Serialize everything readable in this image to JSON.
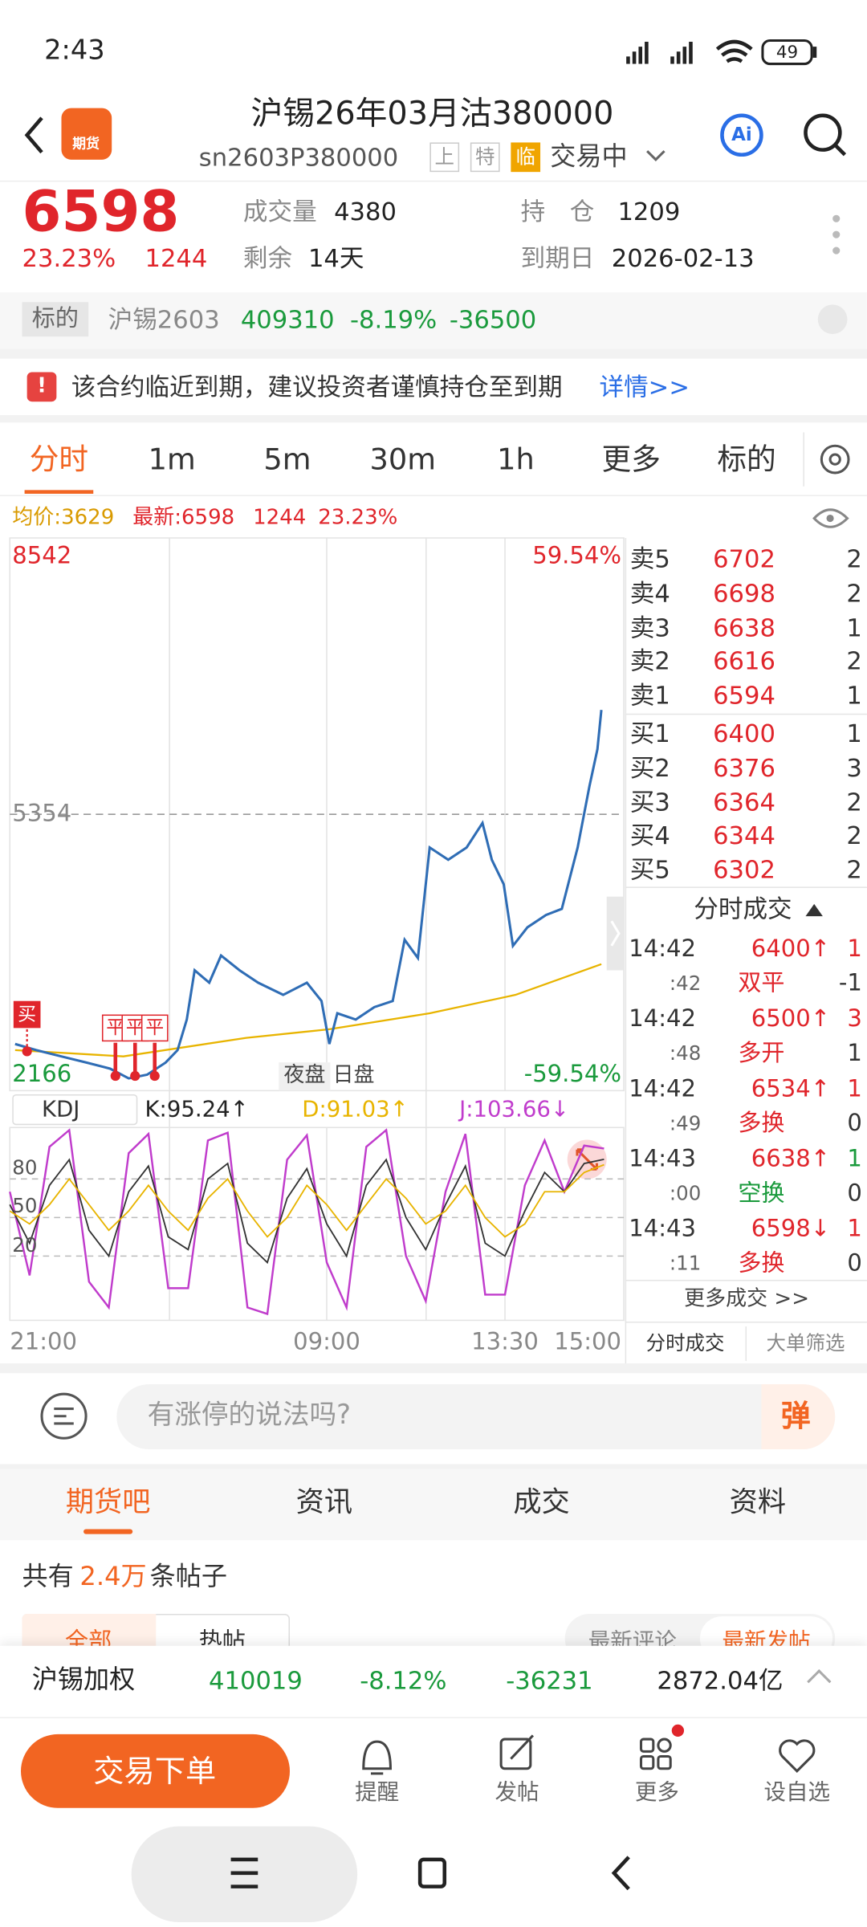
{
  "status_bar": {
    "time": "2:43",
    "battery": "49"
  },
  "header": {
    "logo": "期货",
    "title": "沪锡26年03月沽380000",
    "code": "sn2603P380000",
    "tags": [
      "上",
      "特",
      "临"
    ],
    "state": "交易中",
    "ai": "Ai"
  },
  "quote": {
    "price": "6598",
    "change_pct": "23.23%",
    "change": "1244",
    "volume_label": "成交量",
    "volume": "4380",
    "oi_label": "持　仓",
    "oi": "1209",
    "remain_label": "剩余",
    "remain": "14天",
    "expiry_label": "到期日",
    "expiry": "2026-02-13"
  },
  "underlying": {
    "label": "标的",
    "name": "沪锡2603",
    "price": "409310",
    "pct": "-8.19%",
    "change": "-36500"
  },
  "notice": {
    "icon": "!",
    "text": "该合约临近到期，建议投资者谨慎持仓至到期",
    "link": "详情>>"
  },
  "tabs": [
    "分时",
    "1m",
    "5m",
    "30m",
    "1h",
    "更多",
    "标的"
  ],
  "info_line": {
    "avg": "均价:3629",
    "latest": "最新:6598",
    "change": "1244",
    "pct": "23.23%"
  },
  "chart_data": {
    "type": "line",
    "xlim": [
      0,
      465
    ],
    "xticks": [
      {
        "value": 0,
        "label": "21:00"
      },
      {
        "value": 240,
        "label": "09:00"
      },
      {
        "value": 375,
        "label": "13:30"
      },
      {
        "value": 465,
        "label": "15:00"
      }
    ],
    "ylim": [
      2166,
      8542
    ],
    "yticks": [
      2166,
      5354,
      8542
    ],
    "pct_labels": [
      "59.54%",
      "-59.54%"
    ],
    "session_labels": [
      "夜盘",
      "日盘"
    ],
    "trade_marks": [
      "买",
      "平",
      "平",
      "平"
    ],
    "price": {
      "color": "#2f6db5",
      "x": [
        4,
        20,
        39,
        58,
        76,
        90,
        104,
        118,
        127,
        134,
        140,
        151,
        160,
        174,
        188,
        207,
        225,
        236,
        242,
        248,
        262,
        276,
        290,
        299,
        309,
        318,
        332,
        346,
        358,
        365,
        374,
        381,
        392,
        406,
        418,
        430,
        439,
        445,
        448
      ],
      "values": [
        2704,
        2633,
        2562,
        2491,
        2420,
        2307,
        2350,
        2491,
        2633,
        2987,
        3554,
        3412,
        3724,
        3554,
        3412,
        3271,
        3412,
        3200,
        2704,
        3058,
        2987,
        3129,
        3200,
        3908,
        3696,
        4971,
        4830,
        4971,
        5254,
        4830,
        4546,
        3837,
        4050,
        4192,
        4263,
        4971,
        5679,
        6105,
        6558
      ]
    },
    "avg": {
      "color": "#e8b400",
      "x": [
        4,
        86,
        179,
        242,
        318,
        383,
        448
      ],
      "values": [
        2633,
        2562,
        2775,
        2874,
        3058,
        3271,
        3625
      ]
    },
    "kdj": {
      "selector": "KDJ",
      "labels": [
        "K:95.24↑",
        "D:91.03↑",
        "J:103.66↓"
      ],
      "ylim": [
        -30,
        120
      ],
      "yticks": [
        20,
        50,
        80
      ],
      "x": [
        0,
        15,
        30,
        45,
        60,
        75,
        90,
        105,
        120,
        135,
        150,
        165,
        180,
        195,
        210,
        225,
        240,
        255,
        270,
        285,
        300,
        315,
        330,
        345,
        360,
        375,
        390,
        405,
        420,
        435,
        450
      ],
      "series": [
        {
          "color": "#333333",
          "values": [
            60,
            30,
            75,
            95,
            40,
            20,
            70,
            90,
            35,
            25,
            80,
            92,
            30,
            15,
            65,
            88,
            45,
            20,
            75,
            95,
            50,
            25,
            60,
            90,
            30,
            20,
            55,
            85,
            70,
            92,
            95.24
          ]
        },
        {
          "color": "#e8b400",
          "values": [
            55,
            45,
            60,
            80,
            60,
            40,
            55,
            75,
            55,
            40,
            65,
            80,
            55,
            35,
            50,
            75,
            60,
            40,
            60,
            80,
            65,
            45,
            55,
            75,
            50,
            35,
            45,
            70,
            70,
            85,
            91.03
          ]
        },
        {
          "color": "#c03ccc",
          "values": [
            70,
            5,
            105,
            118,
            0,
            -20,
            100,
            115,
            -5,
            -5,
            110,
            116,
            -20,
            -25,
            95,
            114,
            15,
            -20,
            105,
            118,
            20,
            -15,
            70,
            115,
            -10,
            -10,
            75,
            110,
            70,
            106,
            103.66
          ]
        }
      ]
    }
  },
  "order_book": {
    "asks": [
      {
        "label": "卖5",
        "price": "6702",
        "qty": "2"
      },
      {
        "label": "卖4",
        "price": "6698",
        "qty": "2"
      },
      {
        "label": "卖3",
        "price": "6638",
        "qty": "1"
      },
      {
        "label": "卖2",
        "price": "6616",
        "qty": "2"
      },
      {
        "label": "卖1",
        "price": "6594",
        "qty": "1"
      }
    ],
    "bids": [
      {
        "label": "买1",
        "price": "6400",
        "qty": "1"
      },
      {
        "label": "买2",
        "price": "6376",
        "qty": "3"
      },
      {
        "label": "买3",
        "price": "6364",
        "qty": "2"
      },
      {
        "label": "买4",
        "price": "6344",
        "qty": "2"
      },
      {
        "label": "买5",
        "price": "6302",
        "qty": "2"
      }
    ]
  },
  "trades": {
    "title": "分时成交",
    "rows": [
      {
        "time": "14:42",
        "price": "6400↑",
        "qty": "1",
        "sec": ":42",
        "type": "双平",
        "delta": "-1",
        "price_color": "#e0252b",
        "qty_color": "#e0252b",
        "type_color": "#e0252b"
      },
      {
        "time": "14:42",
        "price": "6500↑",
        "qty": "3",
        "sec": ":48",
        "type": "多开",
        "delta": "1",
        "price_color": "#e0252b",
        "qty_color": "#e0252b",
        "type_color": "#e0252b"
      },
      {
        "time": "14:42",
        "price": "6534↑",
        "qty": "1",
        "sec": ":49",
        "type": "多换",
        "delta": "0",
        "price_color": "#e0252b",
        "qty_color": "#e0252b",
        "type_color": "#e0252b"
      },
      {
        "time": "14:43",
        "price": "6638↑",
        "qty": "1",
        "sec": ":00",
        "type": "空换",
        "delta": "0",
        "price_color": "#e0252b",
        "qty_color": "#1a9a3c",
        "type_color": "#1a9a3c"
      },
      {
        "time": "14:43",
        "price": "6598↓",
        "qty": "1",
        "sec": ":11",
        "type": "多换",
        "delta": "0",
        "price_color": "#e0252b",
        "qty_color": "#e0252b",
        "type_color": "#e0252b"
      }
    ],
    "more": "更多成交 >>",
    "tabs": [
      "分时成交",
      "大单筛选"
    ]
  },
  "comment_bar": {
    "placeholder": "有涨停的说法吗?",
    "button": "弹"
  },
  "community_tabs": [
    "期货吧",
    "资讯",
    "成交",
    "资料"
  ],
  "posts": {
    "prefix": "共有",
    "count": "2.4万",
    "suffix": "条帖子",
    "filters": [
      "全部",
      "热帖"
    ],
    "sort": [
      "最新评论",
      "最新发帖"
    ]
  },
  "index_bar": {
    "name": "沪锡加权",
    "price": "410019",
    "pct": "-8.12%",
    "change": "-36231",
    "amount": "2872.04亿"
  },
  "actions": {
    "trade": "交易下单",
    "items": [
      "提醒",
      "发帖",
      "更多",
      "设自选"
    ]
  }
}
